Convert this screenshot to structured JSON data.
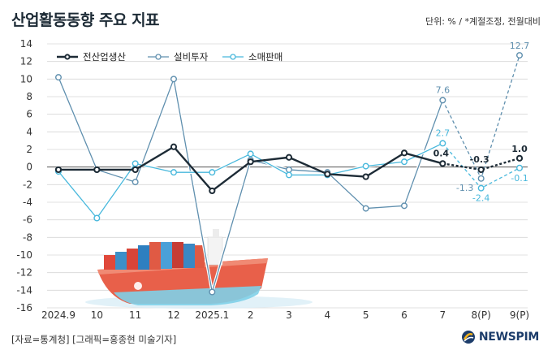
{
  "header": {
    "title": "산업활동동향 주요 지표",
    "unit_note": "단위: % / *계절조정, 전월대비"
  },
  "footer": {
    "source": "[자료=통계청] [그래픽=홍종현 미술기자]",
    "logo_text": "NEWSPIM"
  },
  "colors": {
    "production": "#1d2b36",
    "investment": "#5f8fae",
    "retail": "#48b8dc",
    "ship_hull": "#e8604a",
    "ship_water": "#7fd0e8"
  },
  "chart_data": {
    "type": "line",
    "categories": [
      "2024.9",
      "10",
      "11",
      "12",
      "2025.1",
      "2",
      "3",
      "4",
      "5",
      "6",
      "7",
      "8(P)",
      "9(P)"
    ],
    "ylim": [
      -16,
      14
    ],
    "yticks": [
      14,
      12,
      10,
      8,
      6,
      4,
      2,
      0,
      -2,
      -4,
      -6,
      -8,
      -10,
      -12,
      -14,
      -16
    ],
    "grid": true,
    "legend_position": "top-left",
    "dashed_from_index": 10,
    "series": [
      {
        "name": "전산업생산",
        "color_key": "production",
        "values": [
          -0.3,
          -0.3,
          -0.3,
          2.3,
          -2.7,
          0.6,
          1.1,
          -0.8,
          -1.1,
          1.6,
          0.4,
          -0.3,
          1.0
        ],
        "labels": [
          {
            "index": 10,
            "text": "0.4"
          },
          {
            "index": 11,
            "text": "-0.3"
          },
          {
            "index": 12,
            "text": "1.0"
          }
        ]
      },
      {
        "name": "설비투자",
        "color_key": "investment",
        "values": [
          10.2,
          -0.3,
          -1.7,
          10.0,
          -14.2,
          0.8,
          -0.3,
          -0.6,
          -4.7,
          -4.4,
          7.6,
          -1.3,
          12.7
        ],
        "labels": [
          {
            "index": 10,
            "text": "7.6"
          },
          {
            "index": 11,
            "text": "-1.3"
          },
          {
            "index": 12,
            "text": "12.7"
          }
        ]
      },
      {
        "name": "소매판매",
        "color_key": "retail",
        "values": [
          -0.5,
          -5.8,
          0.4,
          -0.6,
          -0.6,
          1.5,
          -0.9,
          -0.9,
          0.1,
          0.6,
          2.7,
          -2.4,
          -0.1
        ],
        "labels": [
          {
            "index": 10,
            "text": "2.7"
          },
          {
            "index": 11,
            "text": "-2.4"
          },
          {
            "index": 12,
            "text": "-0.1"
          }
        ]
      }
    ]
  }
}
